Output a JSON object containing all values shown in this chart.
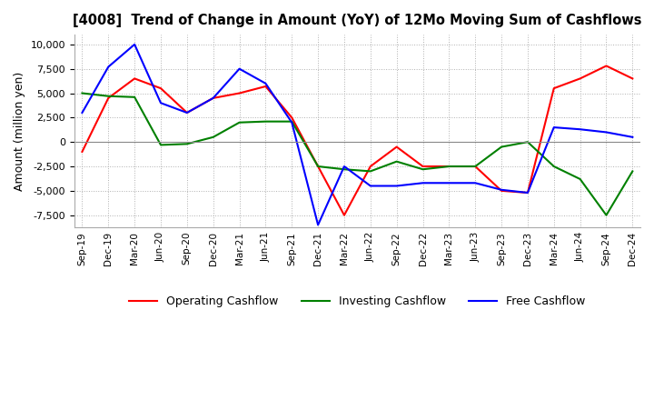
{
  "title": "[4008]  Trend of Change in Amount (YoY) of 12Mo Moving Sum of Cashflows",
  "ylabel": "Amount (million yen)",
  "x_labels": [
    "Sep-19",
    "Dec-19",
    "Mar-20",
    "Jun-20",
    "Sep-20",
    "Dec-20",
    "Mar-21",
    "Jun-21",
    "Sep-21",
    "Dec-21",
    "Mar-22",
    "Jun-22",
    "Sep-22",
    "Dec-22",
    "Mar-23",
    "Jun-23",
    "Sep-23",
    "Dec-23",
    "Mar-24",
    "Jun-24",
    "Sep-24",
    "Dec-24"
  ],
  "operating": [
    -1000,
    4500,
    6500,
    5500,
    3000,
    4500,
    5000,
    5700,
    2500,
    -2500,
    -7500,
    -2500,
    -500,
    -2500,
    -2500,
    -2500,
    -5000,
    -5200,
    5500,
    6500,
    7800,
    6500
  ],
  "investing": [
    5000,
    4700,
    4600,
    -300,
    -200,
    500,
    2000,
    2100,
    2100,
    -2500,
    -2800,
    -3000,
    -2000,
    -2800,
    -2500,
    -2500,
    -500,
    0,
    -2500,
    -3800,
    -7500,
    -3000
  ],
  "free": [
    3000,
    7700,
    10000,
    4000,
    3000,
    4500,
    7500,
    6000,
    2000,
    -8500,
    -2500,
    -4500,
    -4500,
    -4200,
    -4200,
    -4200,
    -4900,
    -5200,
    1500,
    1300,
    1000,
    500
  ],
  "ylim": [
    -8750,
    11000
  ],
  "yticks": [
    -7500,
    -5000,
    -2500,
    0,
    2500,
    5000,
    7500,
    10000
  ],
  "operating_color": "#ff0000",
  "investing_color": "#008000",
  "free_color": "#0000ff",
  "bg_color": "#ffffff",
  "grid_color": "#b0b0b0"
}
